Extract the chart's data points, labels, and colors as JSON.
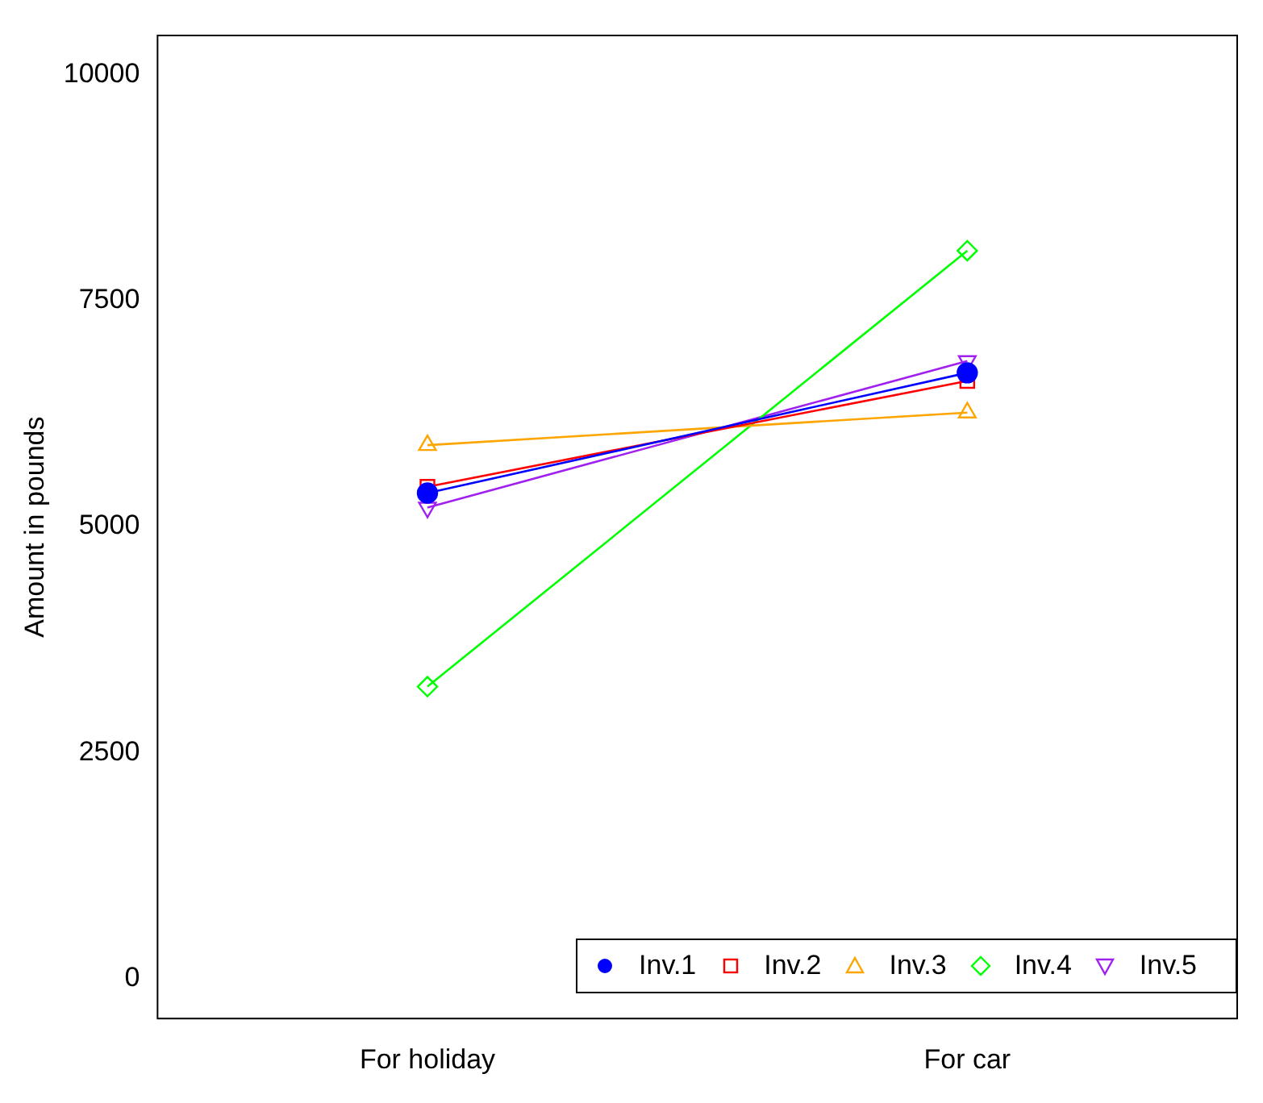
{
  "chart_data": {
    "type": "line",
    "ylabel": "Amount in pounds",
    "categories": [
      "For holiday",
      "For car"
    ],
    "series": [
      {
        "name": "Inv.1",
        "color": "#0000ff",
        "values": [
          5370,
          6700
        ],
        "marker": "circle"
      },
      {
        "name": "Inv.2",
        "color": "#ff0000",
        "values": [
          5440,
          6610
        ],
        "marker": "square"
      },
      {
        "name": "Inv.3",
        "color": "#ffa500",
        "values": [
          5900,
          6260
        ],
        "marker": "triangle"
      },
      {
        "name": "Inv.4",
        "color": "#00ff00",
        "values": [
          3230,
          8050
        ],
        "marker": "diamond"
      },
      {
        "name": "Inv.5",
        "color": "#a020f0",
        "values": [
          5210,
          6830
        ],
        "marker": "triangle-down"
      }
    ],
    "ylim": [
      -440,
      10430
    ],
    "yticks": [
      0,
      2500,
      5000,
      7500,
      10000
    ],
    "grid": false,
    "legend": "bottom right"
  }
}
